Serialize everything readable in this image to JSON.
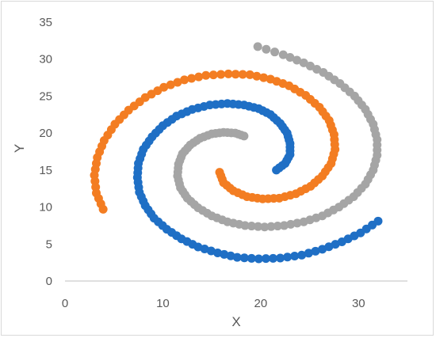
{
  "chart_data": {
    "type": "scatter",
    "title": "",
    "xlabel": "X",
    "ylabel": "Y",
    "xlim": [
      0,
      35
    ],
    "ylim": [
      0,
      35
    ],
    "xticks": [
      "0",
      "10",
      "20",
      "30"
    ],
    "yticks": [
      "0",
      "5",
      "10",
      "15",
      "20",
      "25",
      "30",
      "35"
    ],
    "grid": false,
    "legend": "none",
    "series": [
      {
        "color": "#1f6fc5",
        "points": [
          [
            21.6,
            15.0
          ],
          [
            22.5,
            15.9
          ],
          [
            23.0,
            17.1
          ],
          [
            23.0,
            18.6
          ],
          [
            22.7,
            20.0
          ],
          [
            22.0,
            21.3
          ],
          [
            21.0,
            22.5
          ],
          [
            19.8,
            23.3
          ],
          [
            18.3,
            23.8
          ],
          [
            16.6,
            24.0
          ],
          [
            14.8,
            23.8
          ],
          [
            13.0,
            23.2
          ],
          [
            11.4,
            22.3
          ],
          [
            10.0,
            21.0
          ],
          [
            8.9,
            19.5
          ],
          [
            8.0,
            17.8
          ],
          [
            7.5,
            15.9
          ],
          [
            7.4,
            14.0
          ],
          [
            7.6,
            12.0
          ],
          [
            8.2,
            10.2
          ],
          [
            9.1,
            8.5
          ],
          [
            10.4,
            7.0
          ],
          [
            11.9,
            5.7
          ],
          [
            13.6,
            4.6
          ],
          [
            15.6,
            3.8
          ],
          [
            17.6,
            3.2
          ],
          [
            19.8,
            3.0
          ],
          [
            22.0,
            3.1
          ],
          [
            24.2,
            3.5
          ],
          [
            26.3,
            4.3
          ],
          [
            28.3,
            5.3
          ],
          [
            30.2,
            6.5
          ],
          [
            32.0,
            8.1
          ]
        ]
      },
      {
        "color": "#f37d22",
        "points": [
          [
            15.8,
            14.7
          ],
          [
            16.2,
            13.3
          ],
          [
            17.2,
            12.2
          ],
          [
            18.6,
            11.4
          ],
          [
            20.2,
            11.1
          ],
          [
            21.9,
            11.2
          ],
          [
            23.6,
            11.8
          ],
          [
            25.1,
            12.8
          ],
          [
            26.3,
            14.2
          ],
          [
            27.2,
            15.9
          ],
          [
            27.6,
            17.8
          ],
          [
            27.5,
            19.8
          ],
          [
            27.0,
            21.7
          ],
          [
            26.0,
            23.5
          ],
          [
            24.6,
            25.1
          ],
          [
            22.9,
            26.4
          ],
          [
            21.0,
            27.3
          ],
          [
            18.9,
            27.9
          ],
          [
            16.7,
            28.0
          ],
          [
            14.4,
            27.8
          ],
          [
            12.2,
            27.2
          ],
          [
            10.1,
            26.2
          ],
          [
            8.2,
            24.8
          ],
          [
            6.5,
            23.1
          ],
          [
            5.1,
            21.2
          ],
          [
            4.0,
            19.0
          ],
          [
            3.3,
            16.7
          ],
          [
            3.0,
            14.3
          ],
          [
            3.2,
            11.9
          ],
          [
            3.9,
            9.7
          ]
        ]
      },
      {
        "color": "#a5a5a5",
        "points": [
          [
            18.3,
            19.6
          ],
          [
            17.4,
            20.0
          ],
          [
            16.2,
            20.1
          ],
          [
            15.0,
            19.9
          ],
          [
            13.8,
            19.3
          ],
          [
            12.8,
            18.4
          ],
          [
            12.0,
            17.2
          ],
          [
            11.6,
            15.8
          ],
          [
            11.5,
            14.2
          ],
          [
            11.8,
            12.6
          ],
          [
            12.5,
            11.2
          ],
          [
            13.6,
            9.9
          ],
          [
            15.0,
            8.8
          ],
          [
            16.6,
            8.0
          ],
          [
            18.4,
            7.5
          ],
          [
            20.4,
            7.3
          ],
          [
            22.4,
            7.5
          ],
          [
            24.4,
            8.0
          ],
          [
            26.3,
            8.8
          ],
          [
            28.0,
            10.0
          ],
          [
            29.5,
            11.4
          ],
          [
            30.7,
            13.1
          ],
          [
            31.5,
            15.0
          ],
          [
            31.9,
            17.0
          ],
          [
            31.9,
            19.1
          ],
          [
            31.5,
            21.2
          ],
          [
            30.7,
            23.2
          ],
          [
            29.6,
            25.0
          ],
          [
            28.1,
            26.7
          ],
          [
            26.4,
            28.2
          ],
          [
            24.4,
            29.5
          ],
          [
            22.3,
            30.6
          ],
          [
            19.7,
            31.7
          ]
        ]
      }
    ]
  }
}
